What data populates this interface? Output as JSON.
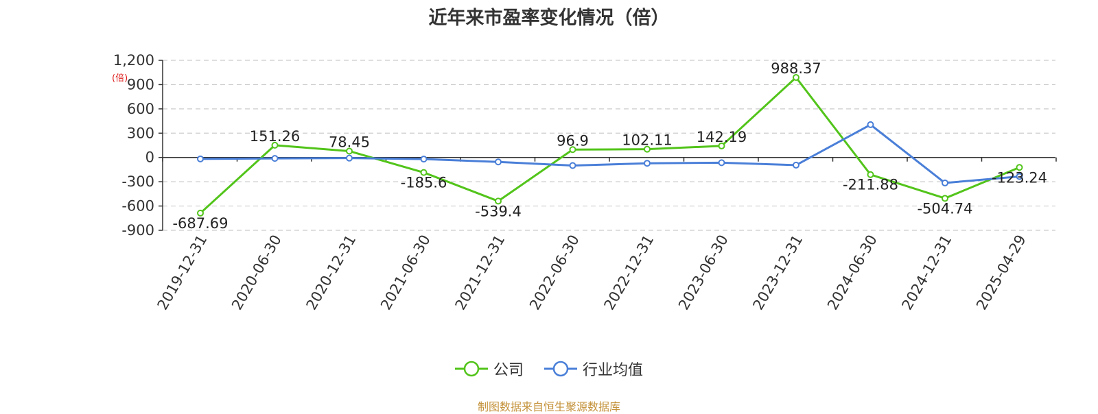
{
  "title": "近年来市盈率变化情况（倍）",
  "unit_label": "(倍)",
  "source": "制图数据来自恒生聚源数据库",
  "colors": {
    "company": "#52c41a",
    "industry": "#4a7fd8",
    "grid": "#cccccc",
    "axis": "#333333"
  },
  "legend": [
    {
      "label": "公司",
      "color": "#52c41a"
    },
    {
      "label": "行业均值",
      "color": "#4a7fd8"
    }
  ],
  "chart_data": {
    "type": "line",
    "title": "近年来市盈率变化情况（倍）",
    "ylabel": "(倍)",
    "ylim": [
      -900,
      1200
    ],
    "yticks": [
      1200,
      900,
      600,
      300,
      0,
      -300,
      -600,
      -900
    ],
    "ytick_labels": [
      "1,200",
      "900",
      "600",
      "300",
      "0",
      "-300",
      "-600",
      "-900"
    ],
    "categories": [
      "2019-12-31",
      "2020-06-30",
      "2020-12-31",
      "2021-06-30",
      "2021-12-31",
      "2022-06-30",
      "2022-12-31",
      "2023-06-30",
      "2023-12-31",
      "2024-06-30",
      "2024-12-31",
      "2025-04-29"
    ],
    "series": [
      {
        "name": "公司",
        "values": [
          -687.69,
          151.26,
          78.45,
          -185.6,
          -539.4,
          96.9,
          102.11,
          142.19,
          988.37,
          -211.88,
          -504.74,
          -123.24
        ],
        "labels": [
          "-687.69",
          "151.26",
          "78.45",
          "-185.6",
          "-539.4",
          "96.9",
          "102.11",
          "142.19",
          "988.37",
          "-211.88",
          "-504.74",
          "-123.24"
        ]
      },
      {
        "name": "行业均值",
        "values": [
          -18,
          -12,
          -8,
          -20,
          -55,
          -100,
          -72,
          -65,
          -95,
          405,
          -315,
          -235
        ]
      }
    ],
    "grid": true,
    "legend_position": "bottom"
  }
}
